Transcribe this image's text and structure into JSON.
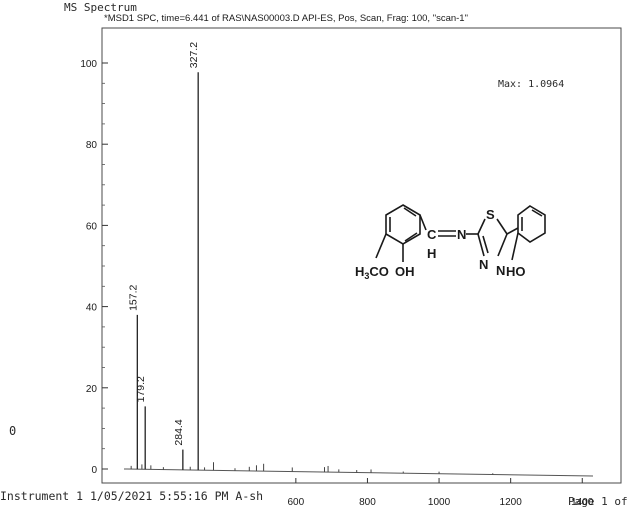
{
  "header": {
    "spectrum_title": "MS Spectrum",
    "scan_title": "*MSD1 SPC, time=6.441 of RAS\\NAS00003.D   API-ES, Pos, Scan, Frag: 100, \"scan-1\"",
    "max_label": "Max: 1.0964"
  },
  "page_left_label": "0",
  "footer": {
    "instrument": "Instrument 1 1/05/2021 5:55:16 PM A-sh",
    "page_info": "Page 1 of"
  },
  "structure": {
    "atoms": {
      "S": "S",
      "N_imine": "N",
      "C_imine": "C",
      "H_imine": "H",
      "N_ring_1": "N",
      "N_ring_2": "N",
      "OH_left": "OH",
      "HO_right": "HO",
      "methoxy_prefix": "H",
      "methoxy_sub": "3",
      "methoxy_suffix": "CO"
    }
  },
  "chart_data": {
    "type": "line",
    "title": "*MSD1 SPC, time=6.441 of RAS\\NAS00003.D   API-ES, Pos, Scan, Frag: 100, \"scan-1\"",
    "xlabel": "",
    "ylabel": "",
    "xlim": [
      50,
      1450
    ],
    "ylim": [
      -4,
      106
    ],
    "x_ticks": [
      600,
      800,
      1000,
      1200,
      1400
    ],
    "y_ticks": [
      0,
      20,
      40,
      60,
      80,
      100
    ],
    "peaks": [
      {
        "mz": 157.2,
        "intensity": 38,
        "label": "157.2"
      },
      {
        "mz": 179.2,
        "intensity": 15.5,
        "label": "179.2"
      },
      {
        "mz": 284.4,
        "intensity": 5,
        "label": "284.4"
      },
      {
        "mz": 327.2,
        "intensity": 98,
        "label": "327.2"
      }
    ],
    "minor_peaks": [
      {
        "mz": 140,
        "intensity": 0.8
      },
      {
        "mz": 170,
        "intensity": 1.2
      },
      {
        "mz": 195,
        "intensity": 1.0
      },
      {
        "mz": 230,
        "intensity": 0.6
      },
      {
        "mz": 305,
        "intensity": 0.8
      },
      {
        "mz": 345,
        "intensity": 0.7
      },
      {
        "mz": 370,
        "intensity": 2.0
      },
      {
        "mz": 430,
        "intensity": 0.6
      },
      {
        "mz": 470,
        "intensity": 1.0
      },
      {
        "mz": 490,
        "intensity": 1.4
      },
      {
        "mz": 510,
        "intensity": 1.8
      },
      {
        "mz": 590,
        "intensity": 1.0
      },
      {
        "mz": 680,
        "intensity": 1.2
      },
      {
        "mz": 690,
        "intensity": 1.5
      },
      {
        "mz": 720,
        "intensity": 0.7
      },
      {
        "mz": 770,
        "intensity": 0.6
      },
      {
        "mz": 810,
        "intensity": 0.8
      },
      {
        "mz": 900,
        "intensity": 0.4
      },
      {
        "mz": 1000,
        "intensity": 0.5
      },
      {
        "mz": 1150,
        "intensity": 0.3
      }
    ],
    "grid": false
  }
}
